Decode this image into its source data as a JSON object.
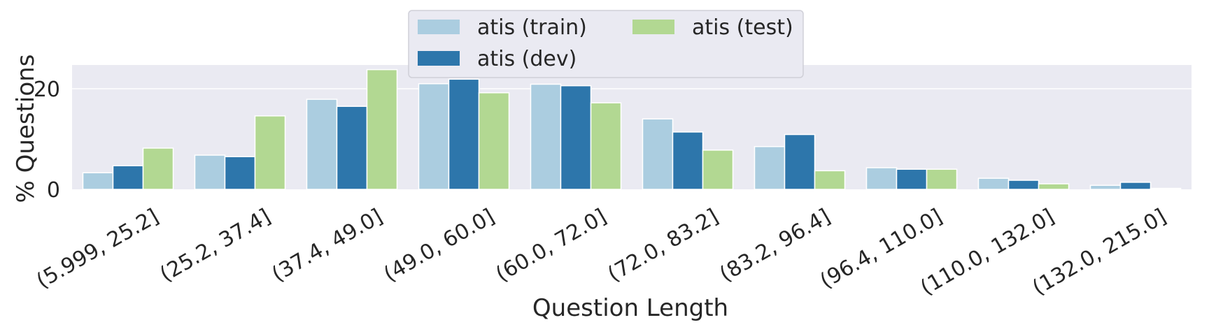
{
  "chart_data": {
    "type": "bar",
    "xlabel": "Question Length",
    "ylabel": "% Questions",
    "ylim": [
      0,
      25
    ],
    "yticks": [
      0,
      20
    ],
    "grid": true,
    "legend_position": "top-center",
    "categories": [
      "(5.999, 25.2]",
      "(25.2, 37.4]",
      "(37.4, 49.0]",
      "(49.0, 60.0]",
      "(60.0, 72.0]",
      "(72.0, 83.2]",
      "(83.2, 96.4]",
      "(96.4, 110.0]",
      "(110.0, 132.0]",
      "(132.0, 215.0]"
    ],
    "series": [
      {
        "name": "atis (train)",
        "color": "#abcde0",
        "values": [
          3.3,
          6.8,
          17.9,
          21.0,
          20.9,
          14.0,
          8.5,
          4.3,
          2.2,
          0.8
        ]
      },
      {
        "name": "atis (dev)",
        "color": "#2d76ab",
        "values": [
          4.7,
          6.5,
          16.5,
          21.9,
          20.6,
          11.4,
          10.9,
          4.0,
          1.8,
          1.4
        ]
      },
      {
        "name": "atis (test)",
        "color": "#b2d892",
        "values": [
          8.2,
          14.6,
          23.8,
          19.2,
          17.2,
          7.8,
          3.7,
          4.0,
          1.1,
          0.2
        ]
      }
    ]
  }
}
